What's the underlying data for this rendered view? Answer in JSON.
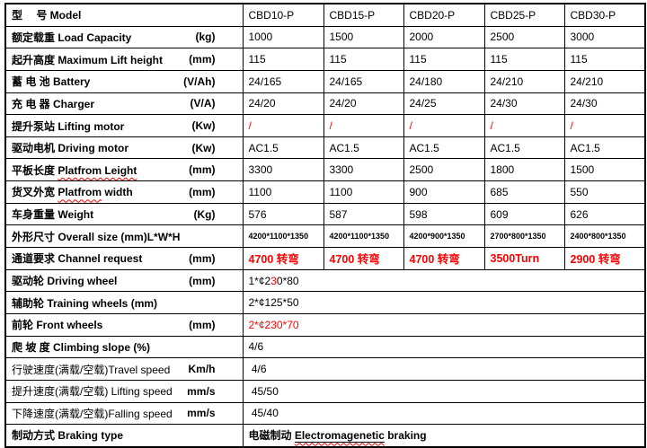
{
  "title": "CBD-P electric pallet truck specification table",
  "colors": {
    "text": "#000000",
    "highlight_red": "#ff0000",
    "grid": "#000000",
    "background": "#ffffff"
  },
  "table": {
    "models": [
      "CBD10-P",
      "CBD15-P",
      "CBD20-P",
      "CBD25-P",
      "CBD30-P"
    ],
    "rows": [
      {
        "label": [
          {
            "t": "型　 号 Model"
          }
        ],
        "values": [
          "CBD10-P",
          "CBD15-P",
          "CBD20-P",
          "CBD25-P",
          "CBD30-P"
        ]
      },
      {
        "label": [
          {
            "t": "额定载重 Load Capacity"
          }
        ],
        "unit": "(kg)",
        "values": [
          "1000",
          "1500",
          "2000",
          "2500",
          "3000"
        ]
      },
      {
        "label": [
          {
            "t": "起升高度 Maximum Lift height"
          }
        ],
        "unit": "(mm)",
        "values": [
          "115",
          "115",
          "115",
          "115",
          "115"
        ]
      },
      {
        "label": [
          {
            "t": "蓄 电 池 Battery"
          }
        ],
        "unit": "(V/Ah)",
        "values": [
          "24/165",
          "24/165",
          "24/180",
          "24/210",
          "24/210"
        ]
      },
      {
        "label": [
          {
            "t": "充 电 器 Charger"
          }
        ],
        "unit": "(V/A)",
        "values": [
          "24/20",
          "24/20",
          "24/25",
          "24/30",
          "24/30"
        ]
      },
      {
        "label": [
          {
            "t": "提升泵站 Lifting motor"
          }
        ],
        "unit": "(Kw)",
        "vclass": "red",
        "values": [
          "/",
          "/",
          "/",
          "/",
          "/"
        ]
      },
      {
        "label": [
          {
            "t": "驱动电机 Driving motor"
          }
        ],
        "unit": "(Kw)",
        "values": [
          "AC1.5",
          "AC1.5",
          "AC1.5",
          "AC1.5",
          "AC1.5"
        ]
      },
      {
        "label": [
          {
            "t": "平板长度 "
          },
          {
            "t": "Platfrom Leight",
            "wavy": true
          }
        ],
        "unit": "(mm)",
        "values": [
          "3300",
          "3300",
          "2500",
          "1800",
          "1500"
        ]
      },
      {
        "label": [
          {
            "t": "货叉外宽 "
          },
          {
            "t": "Platfrom",
            "wavy": true
          },
          {
            "t": " width"
          }
        ],
        "unit": "(mm)",
        "values": [
          "1100",
          "1100",
          "900",
          "685",
          "550"
        ]
      },
      {
        "label": [
          {
            "t": "车身重量 Weight"
          }
        ],
        "unit": "(Kg)",
        "values": [
          "576",
          "587",
          "598",
          "609",
          "626"
        ]
      },
      {
        "label": [
          {
            "t": "外形尺寸 Overall size (mm)L*W*H"
          }
        ],
        "vclass": "small",
        "values": [
          "4200*1100*1350",
          "4200*1100*1350",
          "4200*900*1350",
          "2700*800*1350",
          "2400*800*1350"
        ]
      },
      {
        "label": [
          {
            "t": "通道要求 Channel request"
          }
        ],
        "unit": "(mm)",
        "vclass": "redbold",
        "values": [
          "4700 转弯",
          "4700 转弯",
          "4700 转弯",
          "3500Turn",
          "2900 转弯"
        ]
      },
      {
        "label": [
          {
            "t": "驱动轮 Driving wheel"
          }
        ],
        "unit": "(mm)",
        "value": [
          {
            "t": "1*¢2"
          },
          {
            "t": "3",
            "red": true
          },
          {
            "t": "0*80"
          }
        ]
      },
      {
        "label": [
          {
            "t": "辅助轮 Training wheels (mm)"
          }
        ],
        "value": [
          {
            "t": "2*¢125*50"
          }
        ]
      },
      {
        "label": [
          {
            "t": "前轮 Front wheels"
          }
        ],
        "unit": "(mm)",
        "value": [
          {
            "t": "2*¢230*70",
            "red": true
          }
        ]
      },
      {
        "label": [
          {
            "t": "爬 坡 度 Climbing slope (%)"
          }
        ],
        "value": [
          {
            "t": "4/6"
          }
        ]
      },
      {
        "label": [
          {
            "t": "行驶速度(满载/空载)Travel speed",
            "regular": true
          }
        ],
        "unit": "Km/h",
        "value": [
          {
            "t": " 4/6"
          }
        ]
      },
      {
        "label": [
          {
            "t": "提升速度(满载/空载) Lifting speed",
            "regular": true
          }
        ],
        "unit": "mm/s",
        "value": [
          {
            "t": " 45/50"
          }
        ]
      },
      {
        "label": [
          {
            "t": "下降速度(满载/空载)Falling speed",
            "regular": true
          }
        ],
        "unit": "mm/s",
        "value": [
          {
            "t": " 45/40"
          }
        ]
      },
      {
        "label": [
          {
            "t": "制动方式 Braking type"
          }
        ],
        "value": [
          {
            "t": "电磁制动 ",
            "bold": true
          },
          {
            "t": "Electromagenetic",
            "bold": true,
            "underline": true,
            "wavy": true
          },
          {
            "t": " braking",
            "bold": true
          }
        ]
      }
    ]
  }
}
